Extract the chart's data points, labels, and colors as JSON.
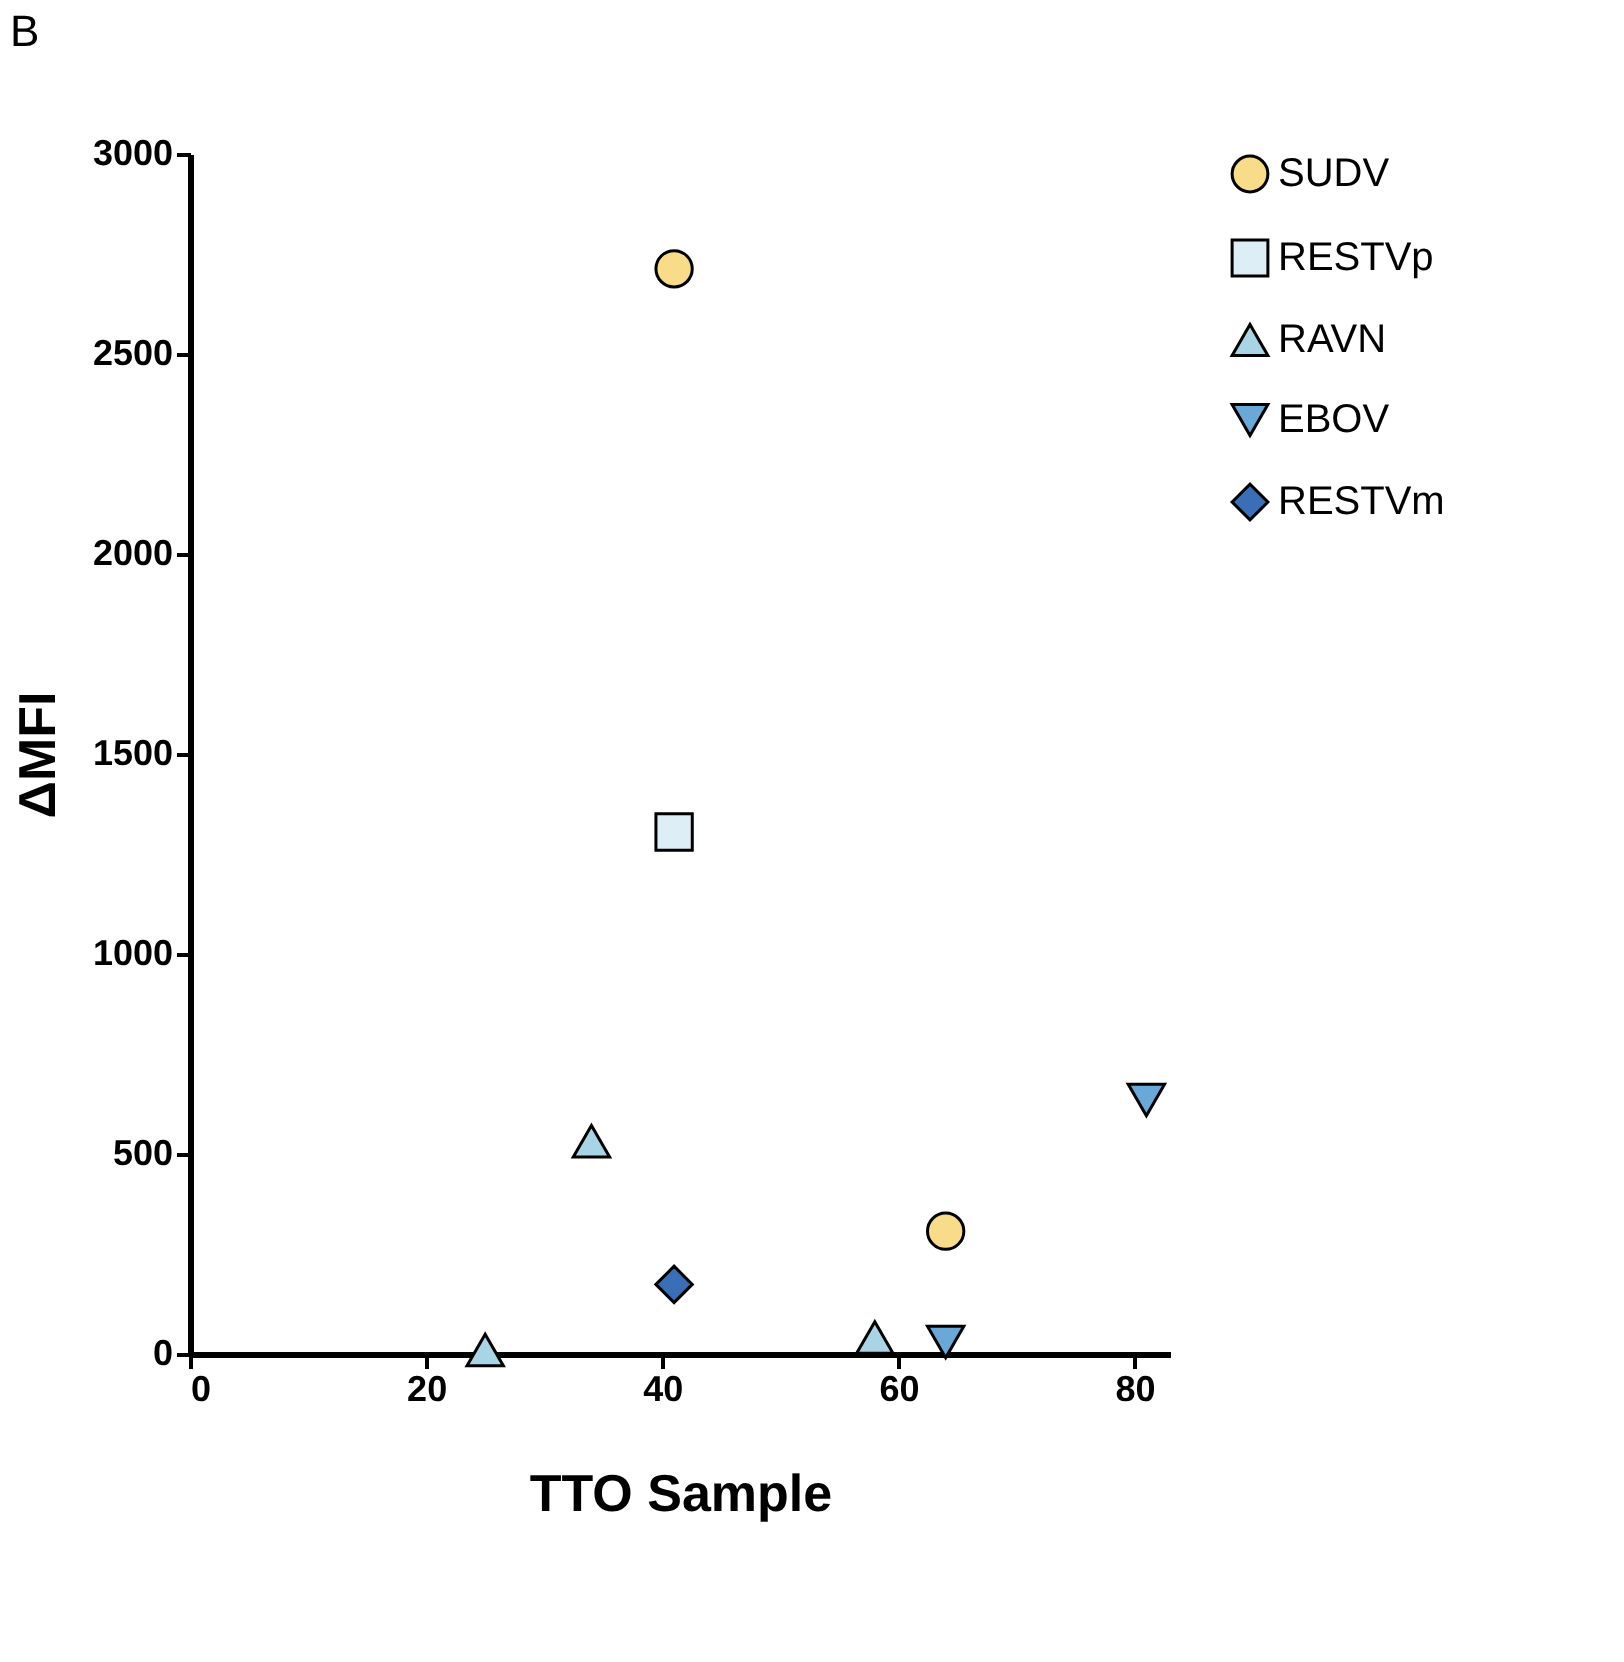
{
  "chart_data": {
    "type": "scatter",
    "title": "B",
    "xlabel": "TTO Sample",
    "ylabel": "ΔMFI",
    "xlim": [
      0,
      83
    ],
    "xticks": [
      0,
      20,
      40,
      60,
      80
    ],
    "ylim": [
      0,
      3000
    ],
    "yticks": [
      0,
      500,
      1000,
      1500,
      2000,
      2500,
      3000
    ],
    "grid": false,
    "legend": "right",
    "series": [
      {
        "name": "SUDV",
        "color": "#f8dc8a",
        "marker": "circle",
        "x": [
          41,
          64
        ],
        "values": [
          2713,
          307
        ]
      },
      {
        "name": "RESTVp",
        "color": "#ddeef7",
        "marker": "square",
        "x": [
          41
        ],
        "values": [
          1305
        ]
      },
      {
        "name": "RAVN",
        "color": "#a9d4e6",
        "marker": "triangle",
        "x": [
          25,
          34,
          58
        ],
        "values": [
          10,
          532,
          41
        ]
      },
      {
        "name": "EBOV",
        "color": "#6aa8d8",
        "marker": "triangle-down",
        "x": [
          64,
          81
        ],
        "values": [
          30,
          635
        ]
      },
      {
        "name": "RESTVm",
        "color": "#3a6fb8",
        "marker": "diamond",
        "x": [
          41
        ],
        "values": [
          174
        ]
      }
    ]
  }
}
